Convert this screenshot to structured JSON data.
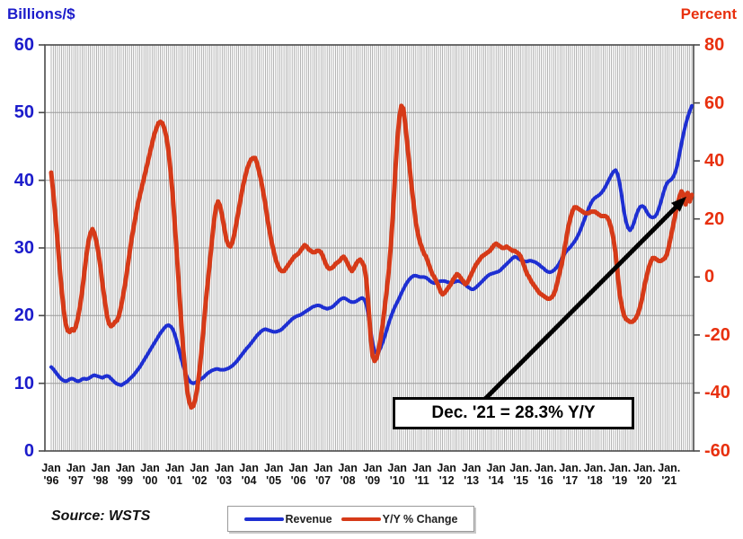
{
  "header": {
    "left_axis_title": "Billions/$",
    "right_axis_title": "Percent"
  },
  "source_note": "Source: WSTS",
  "annotation": {
    "text": "Dec. '21 = 28.3% Y/Y"
  },
  "legend": {
    "items": [
      {
        "label": "Revenue",
        "color": "#1e2fd2"
      },
      {
        "label": "Y/Y % Change",
        "color": "#d63a18"
      }
    ]
  },
  "chart_data": {
    "type": "line",
    "x_start": "Jan 1996",
    "x_end": "Dec 2021",
    "x_step": "month",
    "grid": "vertical line per month, horizontal lines every 10 units of left axis",
    "legend_position": "bottom-center",
    "left_axis": {
      "title": "Billions/$",
      "min": 0,
      "max": 60,
      "step": 10,
      "ticks": [
        60,
        50,
        40,
        30,
        20,
        10,
        0
      ],
      "color": "#1c1ccb"
    },
    "right_axis": {
      "title": "Percent",
      "min": -60,
      "max": 80,
      "step": 20,
      "ticks": [
        80,
        60,
        40,
        20,
        0,
        -20,
        -40,
        -60
      ],
      "color": "#e8300e"
    },
    "x_tick_month_labels": [
      "Jan",
      "Jan",
      "Jan",
      "Jan",
      "Jan",
      "Jan",
      "Jan",
      "Jan",
      "Jan",
      "Jan",
      "Jan",
      "Jan",
      "Jan",
      "Jan",
      "Jan",
      "Jan",
      "Jan",
      "Jan",
      "Jan",
      "Jan.",
      "Jan.",
      "Jan.",
      "Jan.",
      "Jan.",
      "Jan.",
      "Jan."
    ],
    "x_tick_year_labels": [
      "'96",
      "'97",
      "'98",
      "'99",
      "'00",
      "'01",
      "'02",
      "'03",
      "'04",
      "'05",
      "'06",
      "'07",
      "'08",
      "'09",
      "'10",
      "'11",
      "'12",
      "'13",
      "'14",
      "'15",
      "'16",
      "'17",
      "'18",
      "'19",
      "'20",
      "'21"
    ],
    "series": [
      {
        "name": "Revenue",
        "axis": "left",
        "color": "#1e2fd2",
        "stroke_width": 4,
        "values": [
          12.4,
          12.1,
          11.7,
          11.3,
          10.9,
          10.6,
          10.4,
          10.3,
          10.4,
          10.6,
          10.7,
          10.6,
          10.4,
          10.3,
          10.4,
          10.6,
          10.7,
          10.6,
          10.7,
          10.9,
          11.1,
          11.2,
          11.1,
          11.0,
          10.9,
          10.8,
          11.0,
          11.1,
          11.0,
          10.7,
          10.4,
          10.1,
          9.9,
          9.8,
          9.7,
          9.9,
          10.1,
          10.3,
          10.6,
          10.9,
          11.2,
          11.6,
          12.0,
          12.4,
          12.9,
          13.4,
          13.9,
          14.4,
          14.9,
          15.4,
          15.9,
          16.4,
          16.9,
          17.4,
          17.8,
          18.2,
          18.5,
          18.6,
          18.4,
          18.0,
          17.2,
          16.2,
          15.0,
          13.8,
          12.7,
          11.7,
          10.9,
          10.4,
          10.1,
          10.0,
          10.1,
          10.3,
          10.5,
          10.7,
          10.9,
          11.2,
          11.5,
          11.7,
          11.9,
          12.0,
          12.1,
          12.1,
          12.0,
          12.0,
          12.0,
          12.1,
          12.2,
          12.4,
          12.6,
          12.9,
          13.2,
          13.6,
          14.0,
          14.4,
          14.8,
          15.2,
          15.5,
          15.9,
          16.3,
          16.7,
          17.1,
          17.4,
          17.7,
          17.9,
          18.0,
          17.9,
          17.8,
          17.7,
          17.6,
          17.6,
          17.7,
          17.8,
          18.0,
          18.3,
          18.6,
          18.9,
          19.2,
          19.5,
          19.7,
          19.9,
          20.0,
          20.1,
          20.3,
          20.5,
          20.7,
          20.9,
          21.1,
          21.3,
          21.4,
          21.5,
          21.5,
          21.4,
          21.2,
          21.1,
          21.0,
          21.1,
          21.2,
          21.4,
          21.7,
          22.0,
          22.3,
          22.5,
          22.6,
          22.5,
          22.3,
          22.1,
          22.0,
          22.0,
          22.1,
          22.3,
          22.5,
          22.6,
          22.4,
          21.6,
          20.0,
          17.9,
          16.0,
          14.8,
          14.4,
          14.7,
          15.3,
          16.1,
          17.0,
          18.0,
          19.0,
          19.9,
          20.7,
          21.4,
          22.0,
          22.6,
          23.3,
          23.9,
          24.5,
          25.0,
          25.4,
          25.7,
          25.9,
          25.9,
          25.8,
          25.7,
          25.7,
          25.7,
          25.6,
          25.4,
          25.1,
          24.9,
          24.8,
          24.9,
          25.0,
          25.1,
          25.1,
          25.1,
          25.0,
          24.9,
          24.8,
          24.9,
          25.0,
          25.1,
          25.1,
          25.0,
          24.8,
          24.6,
          24.3,
          24.1,
          23.9,
          23.9,
          24.1,
          24.4,
          24.7,
          25.0,
          25.3,
          25.6,
          25.9,
          26.1,
          26.2,
          26.3,
          26.4,
          26.5,
          26.7,
          27.0,
          27.3,
          27.6,
          27.9,
          28.2,
          28.5,
          28.7,
          28.6,
          28.4,
          28.2,
          28.1,
          28.0,
          28.0,
          28.1,
          28.1,
          28.0,
          27.9,
          27.7,
          27.5,
          27.2,
          27.0,
          26.7,
          26.5,
          26.4,
          26.5,
          26.7,
          27.0,
          27.4,
          27.9,
          28.5,
          29.0,
          29.5,
          29.8,
          30.1,
          30.5,
          30.9,
          31.4,
          32.0,
          32.7,
          33.5,
          34.3,
          35.1,
          35.9,
          36.6,
          37.1,
          37.4,
          37.6,
          37.8,
          38.1,
          38.5,
          39.0,
          39.6,
          40.2,
          40.8,
          41.3,
          41.5,
          40.9,
          39.5,
          37.6,
          35.6,
          34.0,
          33.0,
          32.6,
          33.0,
          33.8,
          34.8,
          35.6,
          36.1,
          36.2,
          36.0,
          35.4,
          34.9,
          34.6,
          34.5,
          34.6,
          35.0,
          35.8,
          36.8,
          37.9,
          38.9,
          39.6,
          39.9,
          40.1,
          40.5,
          41.2,
          42.3,
          43.8,
          45.4,
          46.9,
          48.2,
          49.3,
          50.2,
          51.0
        ]
      },
      {
        "name": "Y/Y % Change",
        "axis": "right",
        "color": "#d63a18",
        "stroke_width": 5,
        "values": [
          36,
          29,
          21,
          13,
          4,
          -4,
          -11,
          -16,
          -18.5,
          -19,
          -18,
          -18.5,
          -17,
          -14,
          -10,
          -5,
          1,
          7,
          12,
          15,
          16.5,
          15,
          12,
          8,
          3,
          -3,
          -8,
          -13,
          -16,
          -17,
          -16.5,
          -15.5,
          -15,
          -13,
          -10,
          -6,
          -2,
          3,
          8,
          13,
          17,
          21,
          25,
          28,
          31,
          34,
          37,
          40,
          43,
          46,
          49,
          51,
          53,
          53.5,
          53,
          51,
          48,
          43,
          36,
          28,
          18,
          8,
          -3,
          -14,
          -24,
          -32,
          -39,
          -43,
          -45,
          -44.5,
          -42,
          -38,
          -32,
          -25,
          -17,
          -9,
          -2,
          5,
          12,
          19,
          24,
          26,
          24.5,
          21,
          17,
          13,
          11,
          10.5,
          12,
          15,
          19,
          23,
          27,
          31,
          34,
          37,
          39,
          40.5,
          41,
          41,
          39,
          36,
          33,
          29,
          25,
          20,
          16,
          12,
          9,
          6,
          4,
          2.5,
          2,
          2,
          3,
          4,
          5,
          6,
          7,
          7.5,
          8,
          9,
          10,
          11,
          10.5,
          9.5,
          9,
          8.5,
          8.5,
          9,
          9,
          8.5,
          7,
          5,
          3.5,
          2.8,
          3,
          3.5,
          4.5,
          5,
          5.5,
          6.5,
          7,
          6,
          4.5,
          3,
          2,
          3,
          4.5,
          5.5,
          6,
          5,
          3.5,
          -1,
          -10,
          -20,
          -27,
          -29,
          -28,
          -25,
          -21,
          -16,
          -10,
          -4,
          3,
          12,
          23,
          36,
          47,
          55,
          59,
          58,
          52,
          45,
          38,
          31,
          25,
          19,
          15,
          12,
          10,
          8,
          7,
          5,
          3,
          1,
          0,
          -1.5,
          -3,
          -5,
          -6,
          -5.5,
          -4.5,
          -3.5,
          -2.5,
          -1,
          0,
          1,
          0.5,
          -0.5,
          -1.5,
          -2.5,
          -2,
          -0.5,
          1,
          2.5,
          4,
          5,
          6,
          7,
          7.5,
          8,
          8.5,
          9,
          10,
          11,
          11.5,
          11,
          10.5,
          10,
          10,
          10.5,
          10,
          9.5,
          9,
          9,
          8.5,
          8,
          7,
          5,
          3,
          1,
          0,
          -1.5,
          -2.5,
          -3.5,
          -4.5,
          -5.5,
          -6,
          -6.5,
          -7,
          -7.5,
          -7.5,
          -7,
          -6,
          -4,
          -1,
          2,
          5,
          9,
          13,
          17,
          20,
          22.5,
          24,
          24,
          23.5,
          23,
          22.5,
          22,
          22,
          22,
          22.5,
          22.5,
          22.5,
          22,
          21.5,
          21,
          21,
          21,
          20.5,
          19,
          16.5,
          13,
          8,
          1,
          -6,
          -10,
          -13,
          -14.5,
          -15,
          -15.5,
          -15.5,
          -15,
          -14,
          -12.5,
          -10,
          -7,
          -3,
          0,
          3,
          5,
          6.5,
          6.5,
          6,
          5.5,
          5.5,
          6,
          6.5,
          8,
          11,
          14.5,
          18,
          21.5,
          25,
          27.5,
          29.5,
          28.5,
          25,
          29,
          26,
          28.3
        ]
      }
    ],
    "annotation": {
      "text": "Dec. '21 = 28.3% Y/Y",
      "points_to": {
        "series": "Y/Y % Change",
        "x": "Dec 2021",
        "value": 28.3
      }
    },
    "colors": {
      "grid": "#9b9b9b",
      "plot_border": "#4a4a4a",
      "arrow": "#000000",
      "background": "#ffffff"
    }
  }
}
